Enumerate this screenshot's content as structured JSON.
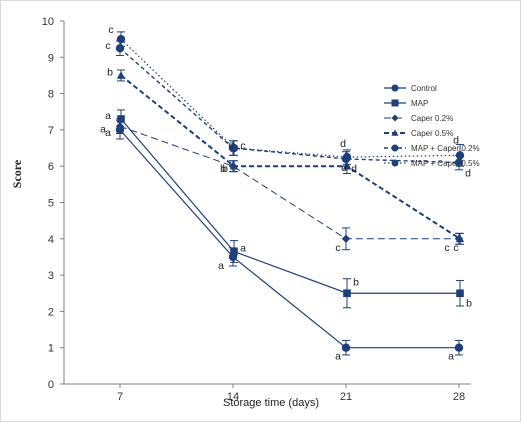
{
  "chart_data": {
    "type": "line",
    "title": "",
    "xlabel": "Storage time (days)",
    "ylabel": "Score",
    "x": [
      7,
      14,
      21,
      28
    ],
    "x_ticks": [
      "7",
      "14",
      "21",
      "28"
    ],
    "ylim": [
      0,
      10
    ],
    "y_ticks": [
      "0",
      "1",
      "2",
      "3",
      "4",
      "5",
      "6",
      "7",
      "8",
      "9",
      "10"
    ],
    "grid": false,
    "legend_position": "top-right",
    "colors": {
      "series": "#1f3f7a",
      "axis": "#7f7f7f"
    },
    "series": [
      {
        "name": "Control",
        "values": [
          7.0,
          3.5,
          1.0,
          1.0
        ],
        "errors": [
          0.25,
          0.25,
          0.2,
          0.2
        ],
        "marker": "circle",
        "dash": "solid",
        "letters": [
          "a",
          "a",
          "a",
          "a"
        ]
      },
      {
        "name": "MAP",
        "values": [
          7.3,
          3.65,
          2.5,
          2.5
        ],
        "errors": [
          0.25,
          0.3,
          0.4,
          0.35
        ],
        "marker": "square",
        "dash": "solid",
        "letters": [
          "a",
          "a",
          "b",
          "b"
        ]
      },
      {
        "name": "Caper 0.2%",
        "values": [
          7.1,
          6.0,
          4.0,
          4.0
        ],
        "errors": [
          0.2,
          0.15,
          0.3,
          0.15
        ],
        "marker": "diamond",
        "dash": "longdash",
        "letters": [
          "a",
          "b",
          "c",
          "c"
        ]
      },
      {
        "name": "Caper 0.5%",
        "values": [
          8.5,
          6.0,
          6.0,
          4.0
        ],
        "errors": [
          0.15,
          0.15,
          0.2,
          0.15
        ],
        "marker": "triangle",
        "dash": "heavydash",
        "letters": [
          "b",
          "b",
          "d",
          "c"
        ]
      },
      {
        "name": "MAP + Caper 0.2%",
        "values": [
          9.25,
          6.5,
          6.2,
          6.1
        ],
        "errors": [
          0.2,
          0.2,
          0.2,
          0.2
        ],
        "marker": "circle",
        "dash": "shortdash",
        "letters": [
          "c",
          "c",
          "d",
          "d"
        ]
      },
      {
        "name": "MAP + Caper 0.5%",
        "values": [
          9.5,
          6.5,
          6.25,
          6.3
        ],
        "errors": [
          0.2,
          0.2,
          0.2,
          0.3
        ],
        "marker": "circle",
        "dash": "dotted",
        "letters": [
          "c",
          "c",
          "d",
          "d"
        ]
      }
    ]
  }
}
